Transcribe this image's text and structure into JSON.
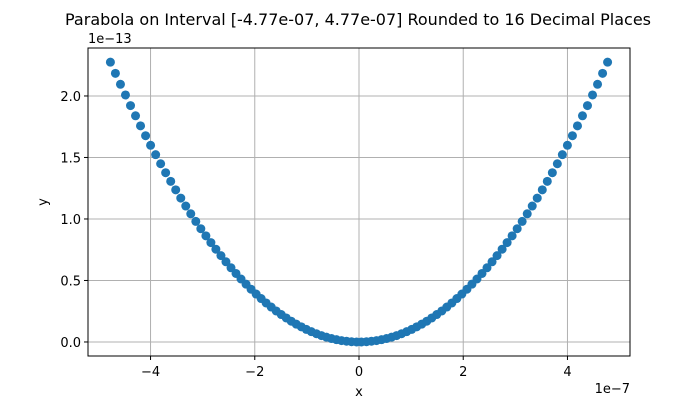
{
  "chart_data": {
    "type": "scatter",
    "title": "Parabola on Interval [-4.77e-07, 4.77e-07] Rounded to 16 Decimal Places",
    "xlabel": "x",
    "ylabel": "y",
    "x_offset_label": "1e−7",
    "y_offset_label": "1e−13",
    "x_scale": 1e-07,
    "y_scale": 1e-13,
    "xlim": [
      -5.2e-07,
      5.2e-07
    ],
    "ylim": [
      -1.14e-14,
      2.39e-13
    ],
    "x_ticks": [
      {
        "value": -4e-07,
        "label": "−4"
      },
      {
        "value": -2e-07,
        "label": "−2"
      },
      {
        "value": 0,
        "label": "0"
      },
      {
        "value": 2e-07,
        "label": "2"
      },
      {
        "value": 4e-07,
        "label": "4"
      }
    ],
    "y_ticks": [
      {
        "value": 0,
        "label": "0.0"
      },
      {
        "value": 5e-14,
        "label": "0.5"
      },
      {
        "value": 1e-13,
        "label": "1.0"
      },
      {
        "value": 1.5e-13,
        "label": "1.5"
      },
      {
        "value": 2e-13,
        "label": "2.0"
      }
    ],
    "grid": true,
    "marker_color": "#1f77b4",
    "function": "y = x^2",
    "x": [
      -4.77e-07,
      -4.674e-07,
      -4.577e-07,
      -4.481e-07,
      -4.384e-07,
      -4.288e-07,
      -4.192e-07,
      -4.095e-07,
      -3.999e-07,
      -3.902e-07,
      -3.806e-07,
      -3.71e-07,
      -3.613e-07,
      -3.517e-07,
      -3.42e-07,
      -3.324e-07,
      -3.228e-07,
      -3.131e-07,
      -3.035e-07,
      -2.938e-07,
      -2.842e-07,
      -2.746e-07,
      -2.649e-07,
      -2.553e-07,
      -2.456e-07,
      -2.36e-07,
      -2.264e-07,
      -2.167e-07,
      -2.071e-07,
      -1.974e-07,
      -1.878e-07,
      -1.782e-07,
      -1.685e-07,
      -1.589e-07,
      -1.492e-07,
      -1.396e-07,
      -1.3e-07,
      -1.203e-07,
      -1.107e-07,
      -1.01e-07,
      -9.14e-08,
      -8.17e-08,
      -7.21e-08,
      -6.25e-08,
      -5.28e-08,
      -4.32e-08,
      -3.35e-08,
      -2.39e-08,
      -1.43e-08,
      -4.6e-09,
      4.6e-09,
      1.43e-08,
      2.39e-08,
      3.35e-08,
      4.32e-08,
      5.28e-08,
      6.25e-08,
      7.21e-08,
      8.17e-08,
      9.14e-08,
      1.01e-07,
      1.107e-07,
      1.203e-07,
      1.3e-07,
      1.396e-07,
      1.492e-07,
      1.589e-07,
      1.685e-07,
      1.782e-07,
      1.878e-07,
      1.974e-07,
      2.071e-07,
      2.167e-07,
      2.264e-07,
      2.36e-07,
      2.456e-07,
      2.553e-07,
      2.649e-07,
      2.746e-07,
      2.842e-07,
      2.938e-07,
      3.035e-07,
      3.131e-07,
      3.228e-07,
      3.324e-07,
      3.42e-07,
      3.517e-07,
      3.613e-07,
      3.71e-07,
      3.806e-07,
      3.902e-07,
      3.999e-07,
      4.095e-07,
      4.192e-07,
      4.288e-07,
      4.384e-07,
      4.481e-07,
      4.577e-07,
      4.674e-07,
      4.77e-07
    ],
    "y": [
      2.275e-13,
      2.184e-13,
      2.095e-13,
      2.008e-13,
      1.922e-13,
      1.839e-13,
      1.757e-13,
      1.677e-13,
      1.599e-13,
      1.523e-13,
      1.449e-13,
      1.376e-13,
      1.306e-13,
      1.237e-13,
      1.17e-13,
      1.105e-13,
      1.042e-13,
      9.8e-14,
      9.21e-14,
      8.63e-14,
      8.08e-14,
      7.54e-14,
      7.02e-14,
      6.52e-14,
      6.03e-14,
      5.57e-14,
      5.12e-14,
      4.7e-14,
      4.29e-14,
      3.9e-14,
      3.53e-14,
      3.17e-14,
      2.84e-14,
      2.52e-14,
      2.23e-14,
      1.95e-14,
      1.69e-14,
      1.45e-14,
      1.23e-14,
      1.02e-14,
      8.4e-15,
      6.7e-15,
      5.2e-15,
      3.9e-15,
      2.8e-15,
      1.9e-15,
      1.1e-15,
      6e-16,
      2e-16,
      0,
      0,
      2e-16,
      6e-16,
      1.1e-15,
      1.9e-15,
      2.8e-15,
      3.9e-15,
      5.2e-15,
      6.7e-15,
      8.4e-15,
      1.02e-14,
      1.23e-14,
      1.45e-14,
      1.69e-14,
      1.95e-14,
      2.23e-14,
      2.52e-14,
      2.84e-14,
      3.17e-14,
      3.53e-14,
      3.9e-14,
      4.29e-14,
      4.7e-14,
      5.12e-14,
      5.57e-14,
      6.03e-14,
      6.52e-14,
      7.02e-14,
      7.54e-14,
      8.08e-14,
      8.63e-14,
      9.21e-14,
      9.8e-14,
      1.042e-13,
      1.105e-13,
      1.17e-13,
      1.237e-13,
      1.306e-13,
      1.376e-13,
      1.449e-13,
      1.523e-13,
      1.599e-13,
      1.677e-13,
      1.757e-13,
      1.839e-13,
      1.922e-13,
      2.008e-13,
      2.095e-13,
      2.184e-13,
      2.275e-13
    ]
  }
}
